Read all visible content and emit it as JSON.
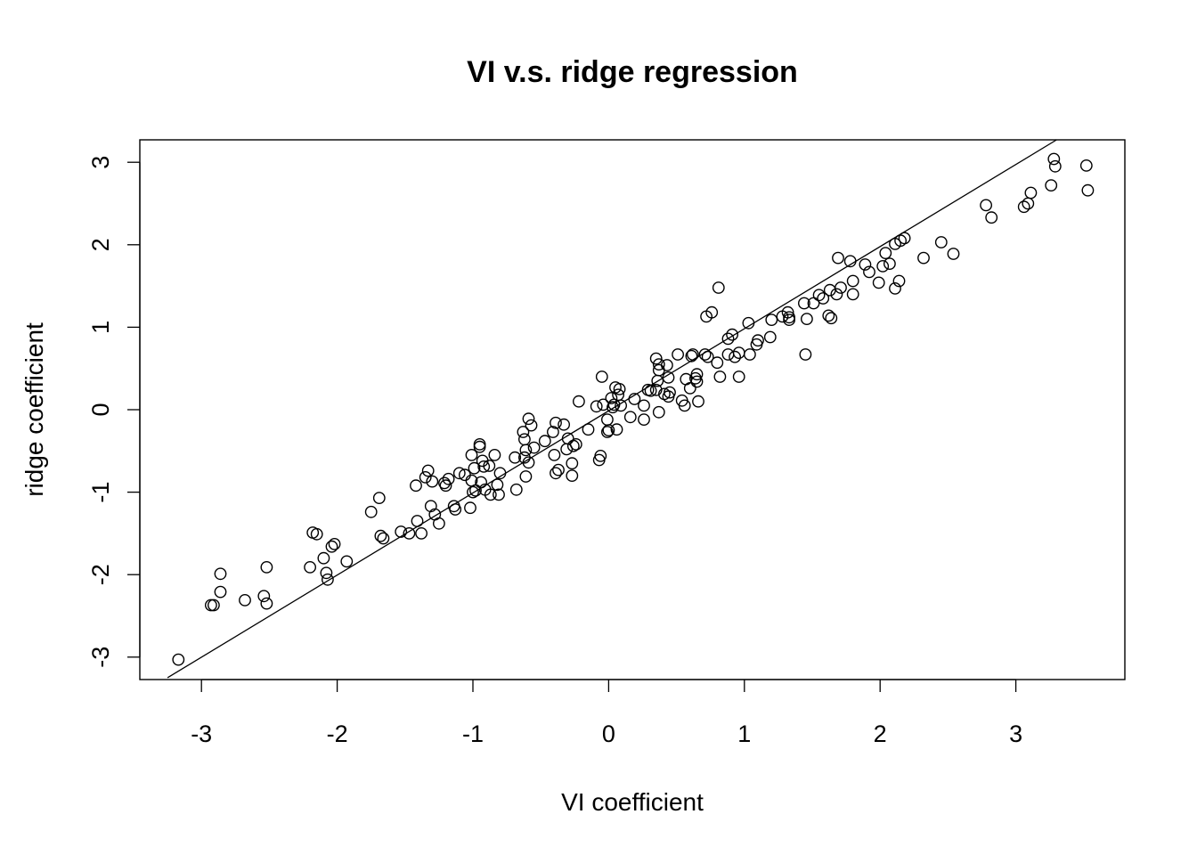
{
  "chart_data": {
    "type": "scatter",
    "title": "VI v.s. ridge regression",
    "xlabel": "VI coefficient",
    "ylabel": "ridge coefficient",
    "xlim": [
      -3.45,
      3.8
    ],
    "ylim": [
      -3.25,
      3.3
    ],
    "xticks": [
      -3,
      -2,
      -1,
      0,
      1,
      2,
      3
    ],
    "yticks": [
      -3,
      -2,
      -1,
      0,
      1,
      2,
      3
    ],
    "xtick_labels": [
      "-3",
      "-2",
      "-1",
      "0",
      "1",
      "2",
      "3"
    ],
    "ytick_labels": [
      "-3",
      "-2",
      "-1",
      "0",
      "1",
      "2",
      "3"
    ],
    "grid": false,
    "reference_line": {
      "intercept": 0,
      "slope": 1
    },
    "marker": "open-circle",
    "point_color": "#000000",
    "points": [
      [
        -3.17,
        -3.03
      ],
      [
        -2.93,
        -2.37
      ],
      [
        -2.91,
        -2.37
      ],
      [
        -2.86,
        -1.99
      ],
      [
        -2.86,
        -2.21
      ],
      [
        -2.68,
        -2.31
      ],
      [
        -2.54,
        -2.26
      ],
      [
        -2.52,
        -2.35
      ],
      [
        -2.52,
        -1.91
      ],
      [
        -2.2,
        -1.91
      ],
      [
        -2.18,
        -1.49
      ],
      [
        -2.15,
        -1.51
      ],
      [
        -2.1,
        -1.8
      ],
      [
        -2.08,
        -1.98
      ],
      [
        -2.07,
        -2.06
      ],
      [
        -2.04,
        -1.66
      ],
      [
        -2.02,
        -1.63
      ],
      [
        -1.93,
        -1.84
      ],
      [
        -1.75,
        -1.24
      ],
      [
        -1.69,
        -1.07
      ],
      [
        -1.68,
        -1.53
      ],
      [
        -1.66,
        -1.56
      ],
      [
        -1.53,
        -1.48
      ],
      [
        -1.47,
        -1.5
      ],
      [
        -1.42,
        -0.92
      ],
      [
        -1.41,
        -1.35
      ],
      [
        -1.38,
        -1.5
      ],
      [
        -1.35,
        -0.82
      ],
      [
        -1.33,
        -0.74
      ],
      [
        -1.31,
        -1.17
      ],
      [
        -1.3,
        -0.87
      ],
      [
        -1.28,
        -1.27
      ],
      [
        -1.25,
        -1.38
      ],
      [
        -1.21,
        -0.89
      ],
      [
        -1.2,
        -0.92
      ],
      [
        -1.18,
        -0.84
      ],
      [
        -1.14,
        -1.17
      ],
      [
        -1.13,
        -1.21
      ],
      [
        -1.1,
        -0.77
      ],
      [
        -1.06,
        -0.79
      ],
      [
        -1.02,
        -1.19
      ],
      [
        -1.01,
        -0.86
      ],
      [
        -1.01,
        -0.55
      ],
      [
        -1.0,
        -1.0
      ],
      [
        -0.99,
        -0.71
      ],
      [
        -0.98,
        -0.98
      ],
      [
        -0.95,
        -0.42
      ],
      [
        -0.95,
        -0.45
      ],
      [
        -0.94,
        -0.88
      ],
      [
        -0.93,
        -0.62
      ],
      [
        -0.92,
        -0.69
      ],
      [
        -0.91,
        -0.97
      ],
      [
        -0.88,
        -0.68
      ],
      [
        -0.87,
        -1.03
      ],
      [
        -0.84,
        -0.55
      ],
      [
        -0.82,
        -0.91
      ],
      [
        -0.81,
        -1.03
      ],
      [
        -0.8,
        -0.77
      ],
      [
        -0.69,
        -0.58
      ],
      [
        -0.68,
        -0.97
      ],
      [
        -0.63,
        -0.27
      ],
      [
        -0.62,
        -0.36
      ],
      [
        -0.62,
        -0.58
      ],
      [
        -0.61,
        -0.49
      ],
      [
        -0.61,
        -0.81
      ],
      [
        -0.59,
        -0.11
      ],
      [
        -0.59,
        -0.64
      ],
      [
        -0.57,
        -0.19
      ],
      [
        -0.55,
        -0.46
      ],
      [
        -0.47,
        -0.38
      ],
      [
        -0.41,
        -0.27
      ],
      [
        -0.4,
        -0.55
      ],
      [
        -0.39,
        -0.16
      ],
      [
        -0.39,
        -0.77
      ],
      [
        -0.37,
        -0.73
      ],
      [
        -0.33,
        -0.18
      ],
      [
        -0.31,
        -0.48
      ],
      [
        -0.3,
        -0.35
      ],
      [
        -0.27,
        -0.65
      ],
      [
        -0.27,
        -0.8
      ],
      [
        -0.26,
        -0.44
      ],
      [
        -0.24,
        -0.42
      ],
      [
        -0.22,
        0.1
      ],
      [
        -0.15,
        -0.24
      ],
      [
        -0.09,
        0.04
      ],
      [
        -0.07,
        -0.61
      ],
      [
        -0.06,
        -0.56
      ],
      [
        -0.05,
        0.4
      ],
      [
        -0.04,
        0.06
      ],
      [
        -0.01,
        -0.12
      ],
      [
        -0.01,
        -0.27
      ],
      [
        0.0,
        -0.25
      ],
      [
        0.02,
        0.14
      ],
      [
        0.03,
        0.03
      ],
      [
        0.04,
        0.06
      ],
      [
        0.05,
        0.27
      ],
      [
        0.06,
        -0.24
      ],
      [
        0.07,
        0.18
      ],
      [
        0.08,
        0.25
      ],
      [
        0.09,
        0.05
      ],
      [
        0.16,
        -0.09
      ],
      [
        0.19,
        0.13
      ],
      [
        0.26,
        -0.12
      ],
      [
        0.26,
        0.05
      ],
      [
        0.29,
        0.24
      ],
      [
        0.31,
        0.23
      ],
      [
        0.35,
        0.24
      ],
      [
        0.35,
        0.62
      ],
      [
        0.36,
        0.35
      ],
      [
        0.37,
        0.48
      ],
      [
        0.37,
        0.55
      ],
      [
        0.37,
        -0.03
      ],
      [
        0.41,
        0.19
      ],
      [
        0.43,
        0.54
      ],
      [
        0.44,
        0.39
      ],
      [
        0.44,
        0.16
      ],
      [
        0.45,
        0.21
      ],
      [
        0.51,
        0.67
      ],
      [
        0.54,
        0.11
      ],
      [
        0.56,
        0.05
      ],
      [
        0.57,
        0.37
      ],
      [
        0.6,
        0.26
      ],
      [
        0.61,
        0.65
      ],
      [
        0.62,
        0.67
      ],
      [
        0.64,
        0.38
      ],
      [
        0.65,
        0.43
      ],
      [
        0.65,
        0.34
      ],
      [
        0.66,
        0.1
      ],
      [
        0.71,
        0.67
      ],
      [
        0.72,
        1.13
      ],
      [
        0.73,
        0.64
      ],
      [
        0.76,
        1.18
      ],
      [
        0.8,
        0.57
      ],
      [
        0.81,
        1.48
      ],
      [
        0.82,
        0.4
      ],
      [
        0.88,
        0.67
      ],
      [
        0.88,
        0.86
      ],
      [
        0.91,
        0.91
      ],
      [
        0.93,
        0.64
      ],
      [
        0.96,
        0.69
      ],
      [
        0.96,
        0.4
      ],
      [
        1.03,
        1.05
      ],
      [
        1.04,
        0.67
      ],
      [
        1.09,
        0.79
      ],
      [
        1.1,
        0.84
      ],
      [
        1.19,
        0.88
      ],
      [
        1.2,
        1.09
      ],
      [
        1.28,
        1.13
      ],
      [
        1.32,
        1.18
      ],
      [
        1.33,
        1.09
      ],
      [
        1.33,
        1.12
      ],
      [
        1.44,
        1.29
      ],
      [
        1.45,
        0.67
      ],
      [
        1.46,
        1.1
      ],
      [
        1.51,
        1.29
      ],
      [
        1.55,
        1.39
      ],
      [
        1.58,
        1.35
      ],
      [
        1.62,
        1.14
      ],
      [
        1.63,
        1.45
      ],
      [
        1.64,
        1.11
      ],
      [
        1.68,
        1.4
      ],
      [
        1.69,
        1.84
      ],
      [
        1.71,
        1.48
      ],
      [
        1.78,
        1.8
      ],
      [
        1.8,
        1.56
      ],
      [
        1.8,
        1.4
      ],
      [
        1.89,
        1.76
      ],
      [
        1.92,
        1.67
      ],
      [
        1.99,
        1.54
      ],
      [
        2.02,
        1.74
      ],
      [
        2.04,
        1.9
      ],
      [
        2.07,
        1.77
      ],
      [
        2.11,
        1.47
      ],
      [
        2.11,
        2.01
      ],
      [
        2.14,
        1.56
      ],
      [
        2.15,
        2.05
      ],
      [
        2.18,
        2.08
      ],
      [
        2.32,
        1.84
      ],
      [
        2.45,
        2.03
      ],
      [
        2.54,
        1.89
      ],
      [
        2.78,
        2.48
      ],
      [
        2.82,
        2.33
      ],
      [
        3.06,
        2.46
      ],
      [
        3.09,
        2.5
      ],
      [
        3.11,
        2.63
      ],
      [
        3.26,
        2.72
      ],
      [
        3.28,
        3.04
      ],
      [
        3.29,
        2.95
      ],
      [
        3.52,
        2.96
      ],
      [
        3.53,
        2.66
      ]
    ]
  }
}
